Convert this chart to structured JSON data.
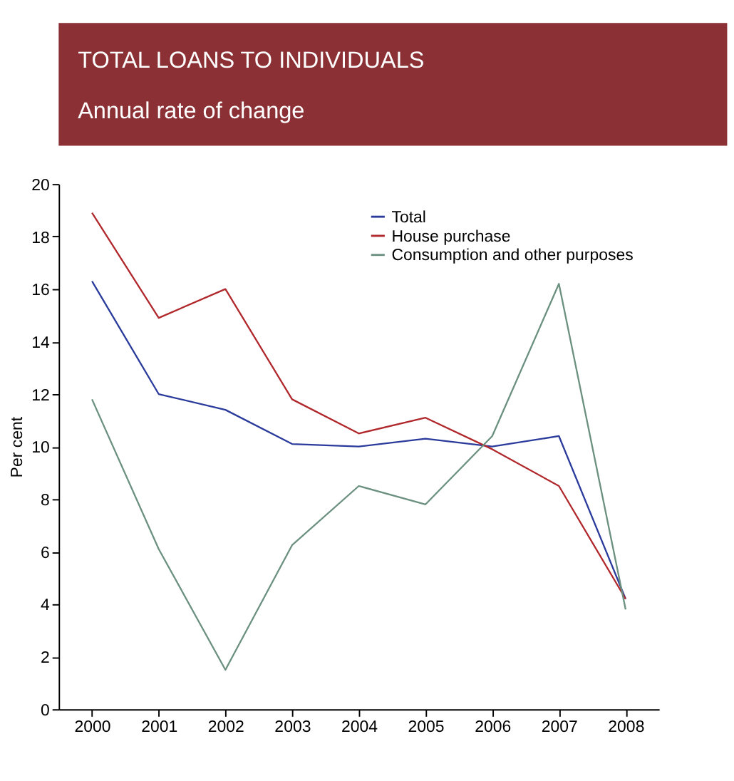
{
  "chart_data": {
    "type": "line",
    "title": "TOTAL LOANS TO INDIVIDUALS",
    "subtitle": "Annual rate of change",
    "ylabel": "Per cent",
    "categories": [
      "2000",
      "2001",
      "2002",
      "2003",
      "2004",
      "2005",
      "2006",
      "2007",
      "2008"
    ],
    "series": [
      {
        "name": "Total",
        "color": "#2a3b9c",
        "values": [
          16.3,
          12.0,
          11.4,
          10.1,
          10.0,
          10.3,
          10.0,
          10.4,
          4.2
        ]
      },
      {
        "name": "House purchase",
        "color": "#b0282c",
        "values": [
          18.9,
          14.9,
          16.0,
          11.8,
          10.5,
          11.1,
          9.9,
          8.5,
          4.2
        ]
      },
      {
        "name": "Consumption and other purposes",
        "color": "#6b9080",
        "values": [
          11.8,
          6.1,
          1.5,
          6.25,
          8.5,
          7.8,
          10.4,
          16.2,
          3.8
        ]
      }
    ],
    "ylim": [
      0,
      20
    ],
    "yticks": [
      0,
      2,
      4,
      6,
      8,
      10,
      12,
      14,
      16,
      18,
      20
    ],
    "grid": false,
    "legend": "top right",
    "marker": "none",
    "line_style": "solid"
  }
}
